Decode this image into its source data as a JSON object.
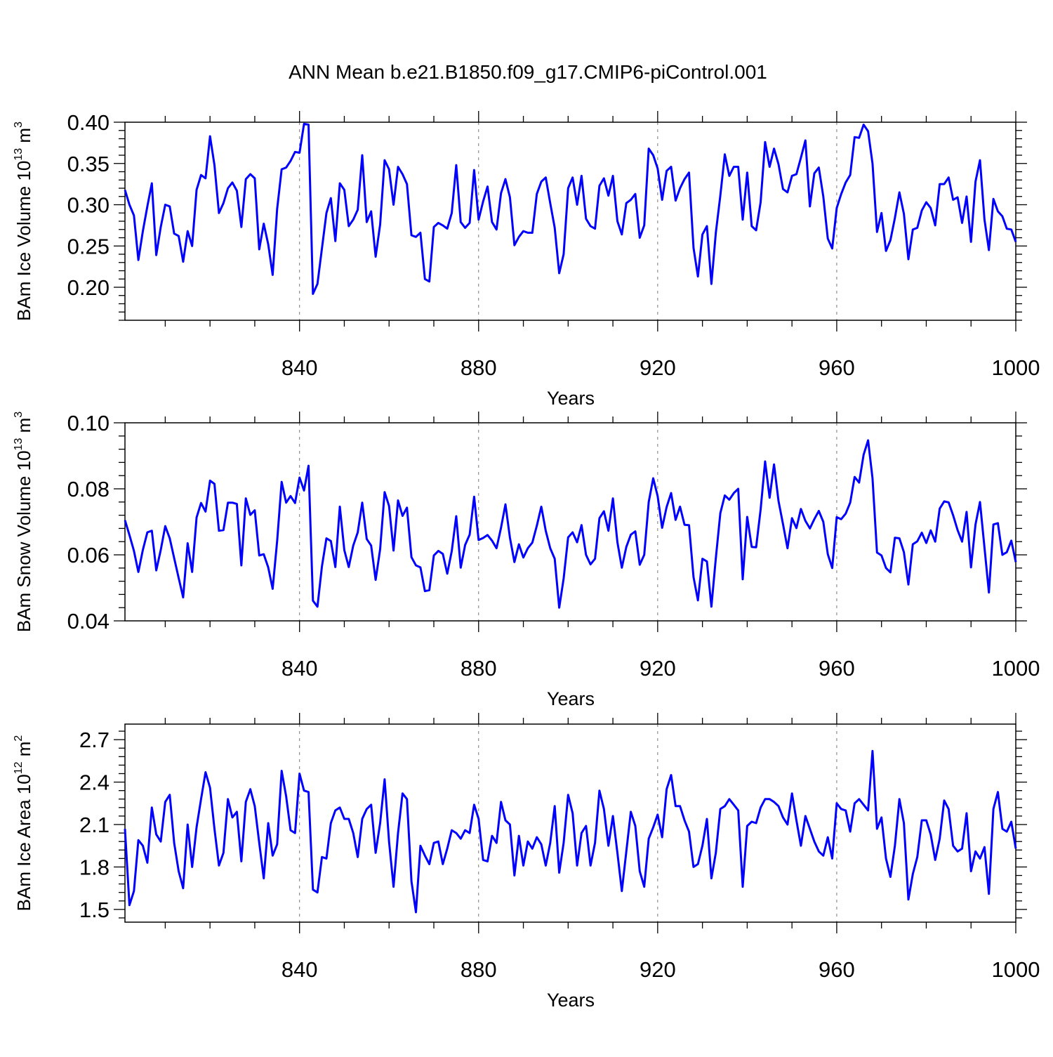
{
  "title": "ANN Mean b.e21.B1850.f09_g17.CMIP6-piControl.001",
  "chart_data": [
    {
      "type": "line",
      "title": "ANN Mean b.e21.B1850.f09_g17.CMIP6-piControl.001",
      "xlabel": "Years",
      "ylabel": {
        "main": "BAm Ice Volume 10",
        "exp": "13",
        "unit": " m",
        "unit_exp": "3"
      },
      "xlim": [
        801,
        1000
      ],
      "ylim": [
        0.16,
        0.4
      ],
      "xticks": [
        840,
        880,
        920,
        960,
        1000
      ],
      "xtick_labels": [
        "840",
        "880",
        "920",
        "960",
        "1000"
      ],
      "yticks": [
        0.2,
        0.25,
        0.3,
        0.35,
        0.4
      ],
      "ytick_labels": [
        "0.20",
        "0.25",
        "0.30",
        "0.35",
        "0.40"
      ],
      "grid": "vertical dashed at major x ticks",
      "color": "#0000ff",
      "x_start": 801,
      "values": [
        0.318,
        0.3,
        0.287,
        0.233,
        0.268,
        0.298,
        0.326,
        0.239,
        0.273,
        0.3,
        0.298,
        0.265,
        0.262,
        0.231,
        0.268,
        0.25,
        0.318,
        0.336,
        0.332,
        0.383,
        0.348,
        0.29,
        0.302,
        0.32,
        0.327,
        0.317,
        0.273,
        0.331,
        0.337,
        0.332,
        0.246,
        0.277,
        0.252,
        0.215,
        0.295,
        0.343,
        0.345,
        0.353,
        0.364,
        0.363,
        0.398,
        0.397,
        0.192,
        0.204,
        0.247,
        0.29,
        0.308,
        0.256,
        0.326,
        0.318,
        0.274,
        0.282,
        0.294,
        0.36,
        0.279,
        0.292,
        0.237,
        0.276,
        0.354,
        0.343,
        0.3,
        0.346,
        0.337,
        0.325,
        0.263,
        0.261,
        0.266,
        0.21,
        0.207,
        0.273,
        0.278,
        0.275,
        0.271,
        0.29,
        0.348,
        0.279,
        0.272,
        0.278,
        0.342,
        0.282,
        0.304,
        0.322,
        0.279,
        0.27,
        0.314,
        0.331,
        0.309,
        0.251,
        0.261,
        0.268,
        0.266,
        0.266,
        0.313,
        0.328,
        0.333,
        0.302,
        0.272,
        0.217,
        0.24,
        0.32,
        0.333,
        0.3,
        0.335,
        0.283,
        0.274,
        0.271,
        0.323,
        0.332,
        0.311,
        0.335,
        0.28,
        0.264,
        0.302,
        0.306,
        0.313,
        0.26,
        0.275,
        0.368,
        0.36,
        0.344,
        0.306,
        0.341,
        0.346,
        0.305,
        0.32,
        0.331,
        0.339,
        0.248,
        0.213,
        0.264,
        0.274,
        0.204,
        0.266,
        0.311,
        0.361,
        0.335,
        0.346,
        0.346,
        0.282,
        0.339,
        0.274,
        0.269,
        0.303,
        0.376,
        0.346,
        0.368,
        0.349,
        0.319,
        0.315,
        0.335,
        0.337,
        0.357,
        0.378,
        0.298,
        0.338,
        0.345,
        0.31,
        0.259,
        0.247,
        0.296,
        0.313,
        0.327,
        0.336,
        0.382,
        0.381,
        0.397,
        0.389,
        0.35,
        0.267,
        0.29,
        0.244,
        0.257,
        0.284,
        0.315,
        0.289,
        0.234,
        0.27,
        0.272,
        0.293,
        0.303,
        0.296,
        0.275,
        0.325,
        0.325,
        0.333,
        0.306,
        0.309,
        0.278,
        0.31,
        0.255,
        0.328,
        0.354,
        0.282,
        0.245,
        0.307,
        0.292,
        0.286,
        0.271,
        0.27,
        0.255
      ]
    },
    {
      "type": "line",
      "xlabel": "Years",
      "ylabel": {
        "main": "BAm Snow Volume 10",
        "exp": "13",
        "unit": " m",
        "unit_exp": "3"
      },
      "xlim": [
        801,
        1000
      ],
      "ylim": [
        0.04,
        0.1
      ],
      "xticks": [
        840,
        880,
        920,
        960,
        1000
      ],
      "xtick_labels": [
        "840",
        "880",
        "920",
        "960",
        "1000"
      ],
      "yticks": [
        0.04,
        0.06,
        0.08,
        0.1
      ],
      "ytick_labels": [
        "0.04",
        "0.06",
        "0.08",
        "0.10"
      ],
      "grid": "vertical dashed at major x ticks",
      "color": "#0000ff",
      "x_start": 801,
      "values": [
        0.0705,
        0.066,
        0.0612,
        0.0548,
        0.0615,
        0.0668,
        0.0673,
        0.0553,
        0.0615,
        0.0687,
        0.065,
        0.059,
        0.053,
        0.0471,
        0.0635,
        0.0548,
        0.0713,
        0.0757,
        0.0731,
        0.0825,
        0.0815,
        0.0673,
        0.0675,
        0.0758,
        0.0758,
        0.0754,
        0.0568,
        0.0771,
        0.0721,
        0.0735,
        0.0598,
        0.0602,
        0.0562,
        0.0497,
        0.0642,
        0.0821,
        0.0758,
        0.0778,
        0.0757,
        0.0834,
        0.0795,
        0.087,
        0.0461,
        0.0443,
        0.0565,
        0.065,
        0.0642,
        0.0563,
        0.0746,
        0.0614,
        0.0563,
        0.0628,
        0.0668,
        0.0758,
        0.0648,
        0.0628,
        0.0524,
        0.0617,
        0.079,
        0.0748,
        0.0613,
        0.0765,
        0.0718,
        0.0743,
        0.0593,
        0.0568,
        0.0562,
        0.049,
        0.0493,
        0.0598,
        0.0612,
        0.0603,
        0.0543,
        0.0611,
        0.0717,
        0.0561,
        0.063,
        0.0661,
        0.0776,
        0.0645,
        0.0651,
        0.066,
        0.0643,
        0.062,
        0.0682,
        0.0753,
        0.0652,
        0.0578,
        0.0632,
        0.0592,
        0.062,
        0.0637,
        0.0688,
        0.0746,
        0.0673,
        0.062,
        0.0588,
        0.044,
        0.0528,
        0.0653,
        0.0668,
        0.0638,
        0.069,
        0.06,
        0.0571,
        0.0588,
        0.0711,
        0.0732,
        0.0673,
        0.0771,
        0.0638,
        0.0561,
        0.0624,
        0.0661,
        0.0671,
        0.057,
        0.06,
        0.076,
        0.0832,
        0.0778,
        0.0682,
        0.0745,
        0.0787,
        0.0706,
        0.0746,
        0.0691,
        0.069,
        0.0533,
        0.0462,
        0.0588,
        0.058,
        0.0443,
        0.059,
        0.0726,
        0.078,
        0.0767,
        0.0787,
        0.08,
        0.0526,
        0.0715,
        0.0624,
        0.0623,
        0.0737,
        0.0883,
        0.0773,
        0.0874,
        0.0763,
        0.0693,
        0.062,
        0.0711,
        0.0681,
        0.0739,
        0.0703,
        0.068,
        0.0708,
        0.0733,
        0.07,
        0.0602,
        0.056,
        0.0714,
        0.0708,
        0.0725,
        0.0758,
        0.0836,
        0.0819,
        0.0903,
        0.0947,
        0.0832,
        0.0607,
        0.0598,
        0.056,
        0.0547,
        0.0652,
        0.065,
        0.0608,
        0.051,
        0.0632,
        0.0641,
        0.0667,
        0.0636,
        0.0674,
        0.064,
        0.074,
        0.0762,
        0.0759,
        0.072,
        0.0675,
        0.064,
        0.073,
        0.0562,
        0.0692,
        0.076,
        0.0622,
        0.0486,
        0.0692,
        0.0696,
        0.06,
        0.0608,
        0.0643,
        0.0578
      ]
    },
    {
      "type": "line",
      "xlabel": "Years",
      "ylabel": {
        "main": "BAm Ice Area 10",
        "exp": "12",
        "unit": " m",
        "unit_exp": "2"
      },
      "xlim": [
        801,
        1000
      ],
      "ylim": [
        1.41,
        2.81
      ],
      "xticks": [
        840,
        880,
        920,
        960,
        1000
      ],
      "xtick_labels": [
        "840",
        "880",
        "920",
        "960",
        "1000"
      ],
      "yticks": [
        1.5,
        1.8,
        2.1,
        2.4,
        2.7
      ],
      "ytick_labels": [
        "1.5",
        "1.8",
        "2.1",
        "2.4",
        "2.7"
      ],
      "grid": "vertical dashed at major x ticks",
      "color": "#0000ff",
      "x_start": 801,
      "values": [
        2.07,
        1.53,
        1.63,
        1.99,
        1.95,
        1.83,
        2.22,
        2.03,
        1.98,
        2.26,
        2.31,
        1.97,
        1.77,
        1.65,
        2.1,
        1.8,
        2.08,
        2.28,
        2.47,
        2.36,
        2.07,
        1.81,
        1.9,
        2.28,
        2.15,
        2.19,
        1.84,
        2.26,
        2.35,
        2.23,
        1.97,
        1.72,
        2.11,
        1.88,
        1.96,
        2.48,
        2.3,
        2.06,
        2.04,
        2.46,
        2.34,
        2.33,
        1.64,
        1.62,
        1.87,
        1.86,
        2.11,
        2.2,
        2.22,
        2.14,
        2.14,
        2.04,
        1.87,
        2.14,
        2.21,
        2.24,
        1.9,
        2.11,
        2.42,
        1.98,
        1.66,
        2.04,
        2.32,
        2.28,
        1.7,
        1.48,
        1.95,
        1.88,
        1.82,
        1.97,
        1.98,
        1.82,
        1.93,
        2.06,
        2.04,
        2.0,
        2.06,
        2.04,
        2.24,
        2.14,
        1.85,
        1.84,
        2.02,
        1.97,
        2.26,
        2.13,
        2.1,
        1.74,
        2.02,
        1.81,
        1.98,
        1.93,
        2.01,
        1.96,
        1.81,
        1.97,
        2.23,
        1.76,
        1.97,
        2.31,
        2.18,
        1.81,
        2.04,
        2.09,
        1.81,
        1.97,
        2.34,
        2.21,
        1.95,
        2.16,
        1.9,
        1.63,
        1.91,
        2.19,
        2.09,
        1.77,
        1.66,
        2.0,
        2.08,
        2.17,
        2.01,
        2.35,
        2.45,
        2.23,
        2.23,
        2.13,
        2.05,
        1.8,
        1.82,
        1.95,
        2.14,
        1.72,
        1.9,
        2.21,
        2.23,
        2.28,
        2.24,
        2.2,
        1.66,
        2.09,
        2.12,
        2.11,
        2.22,
        2.28,
        2.28,
        2.26,
        2.23,
        2.15,
        2.1,
        2.32,
        2.13,
        1.95,
        2.16,
        2.07,
        1.98,
        1.91,
        1.88,
        2.01,
        1.86,
        2.25,
        2.21,
        2.2,
        2.05,
        2.25,
        2.28,
        2.24,
        2.2,
        2.62,
        2.07,
        2.15,
        1.86,
        1.73,
        1.95,
        2.28,
        2.11,
        1.57,
        1.75,
        1.87,
        2.13,
        2.13,
        2.03,
        1.85,
        2.0,
        2.27,
        2.21,
        1.95,
        1.91,
        1.93,
        2.18,
        1.77,
        1.91,
        1.86,
        1.94,
        1.61,
        2.21,
        2.33,
        2.07,
        2.05,
        2.12,
        1.93
      ]
    }
  ]
}
